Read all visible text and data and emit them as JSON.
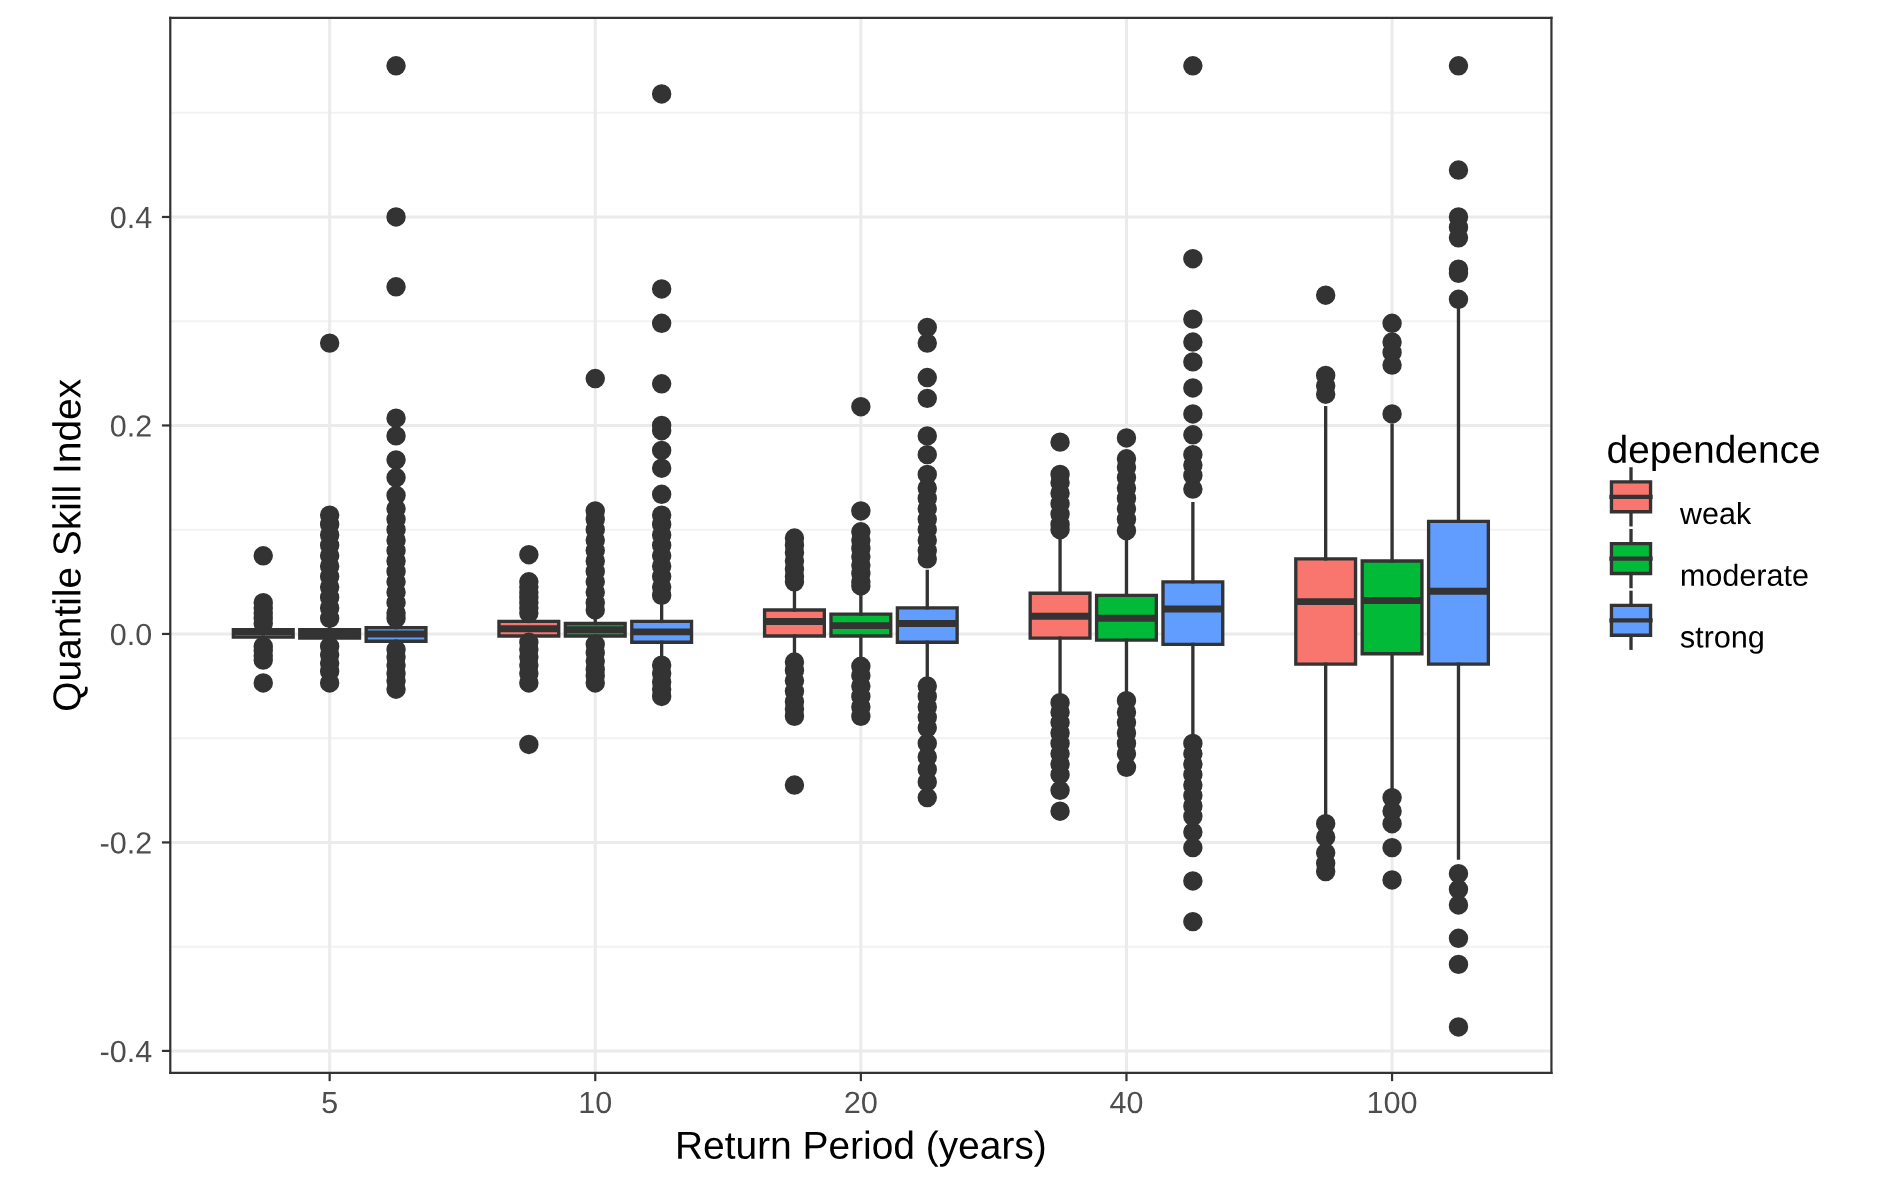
{
  "chart_data": {
    "type": "box",
    "xlabel": "Return Period (years)",
    "ylabel": "Quantile Skill Index",
    "legend_title": "dependence",
    "legend": "right",
    "grid": true,
    "categories": [
      "5",
      "10",
      "20",
      "40",
      "100"
    ],
    "ylim": [
      -0.421,
      0.591
    ],
    "yticks": [
      {
        "value": -0.4,
        "label": "-0.4"
      },
      {
        "value": -0.2,
        "label": "-0.2"
      },
      {
        "value": 0,
        "label": "0.0"
      },
      {
        "value": 0.2,
        "label": "0.2"
      },
      {
        "value": 0.4,
        "label": "0.4"
      }
    ],
    "series": [
      {
        "name": "weak",
        "color": "#f8766d",
        "boxes": [
          {
            "low": -0.008,
            "q1": -0.003,
            "median": 0.002,
            "q3": 0.004,
            "high": 0.008,
            "outliers": [
              0.075,
              0.03,
              0.025,
              0.02,
              0.015,
              0.01,
              -0.012,
              -0.016,
              -0.021,
              -0.025,
              -0.047
            ]
          },
          {
            "low": -0.006,
            "q1": -0.002,
            "median": 0.005,
            "q3": 0.012,
            "high": 0.014,
            "outliers": [
              0.076,
              0.05,
              0.045,
              0.04,
              0.035,
              0.03,
              0.025,
              0.02,
              -0.008,
              -0.015,
              -0.022,
              -0.03,
              -0.038,
              -0.047,
              -0.106
            ]
          },
          {
            "low": -0.025,
            "q1": -0.002,
            "median": 0.012,
            "q3": 0.023,
            "high": 0.045,
            "outliers": [
              0.092,
              0.085,
              0.078,
              0.07,
              0.062,
              0.055,
              0.05,
              -0.027,
              -0.035,
              -0.045,
              -0.055,
              -0.065,
              -0.072,
              -0.079,
              -0.145
            ]
          },
          {
            "low": -0.064,
            "q1": -0.004,
            "median": 0.017,
            "q3": 0.039,
            "high": 0.095,
            "outliers": [
              0.184,
              0.153,
              0.145,
              0.135,
              0.125,
              0.115,
              0.105,
              0.1,
              -0.066,
              -0.075,
              -0.085,
              -0.095,
              -0.105,
              -0.115,
              -0.125,
              -0.135,
              -0.15,
              -0.17
            ]
          },
          {
            "low": -0.176,
            "q1": -0.029,
            "median": 0.031,
            "q3": 0.072,
            "high": 0.217,
            "outliers": [
              0.325,
              0.248,
              0.238,
              0.23,
              -0.182,
              -0.195,
              -0.21,
              -0.22,
              -0.228
            ]
          }
        ]
      },
      {
        "name": "moderate",
        "color": "#00ba38",
        "boxes": [
          {
            "low": -0.009,
            "q1": -0.004,
            "median": 0.0,
            "q3": 0.004,
            "high": 0.009,
            "outliers": [
              0.279,
              0.114,
              0.105,
              0.095,
              0.085,
              0.075,
              0.065,
              0.055,
              0.045,
              0.035,
              0.025,
              0.015,
              -0.012,
              -0.02,
              -0.028,
              -0.036,
              -0.047
            ]
          },
          {
            "low": -0.006,
            "q1": -0.002,
            "median": 0.004,
            "q3": 0.01,
            "high": 0.015,
            "outliers": [
              0.245,
              0.118,
              0.11,
              0.1,
              0.09,
              0.08,
              0.07,
              0.06,
              0.05,
              0.04,
              0.03,
              0.023,
              -0.01,
              -0.018,
              -0.026,
              -0.034,
              -0.04,
              -0.047
            ]
          },
          {
            "low": -0.025,
            "q1": -0.002,
            "median": 0.008,
            "q3": 0.019,
            "high": 0.04,
            "outliers": [
              0.218,
              0.118,
              0.098,
              0.09,
              0.082,
              0.074,
              0.066,
              0.058,
              0.05,
              0.046,
              -0.031,
              -0.04,
              -0.05,
              -0.06,
              -0.07,
              -0.079
            ]
          },
          {
            "low": -0.06,
            "q1": -0.006,
            "median": 0.015,
            "q3": 0.037,
            "high": 0.09,
            "outliers": [
              0.188,
              0.168,
              0.16,
              0.15,
              0.14,
              0.13,
              0.12,
              0.11,
              0.099,
              -0.064,
              -0.075,
              -0.085,
              -0.095,
              -0.105,
              -0.115,
              -0.128
            ]
          },
          {
            "low": -0.15,
            "q1": -0.019,
            "median": 0.032,
            "q3": 0.07,
            "high": 0.2,
            "outliers": [
              0.298,
              0.28,
              0.27,
              0.258,
              0.211,
              -0.157,
              -0.17,
              -0.182,
              -0.205,
              -0.236
            ]
          }
        ]
      },
      {
        "name": "strong",
        "color": "#619cff",
        "boxes": [
          {
            "low": -0.012,
            "q1": -0.007,
            "median": 0.0,
            "q3": 0.006,
            "high": 0.012,
            "outliers": [
              0.545,
              0.4,
              0.333,
              0.207,
              0.19,
              0.167,
              0.15,
              0.133,
              0.12,
              0.11,
              0.1,
              0.09,
              0.08,
              0.07,
              0.06,
              0.05,
              0.04,
              0.03,
              0.02,
              0.015,
              -0.015,
              -0.022,
              -0.03,
              -0.038,
              -0.045,
              -0.053
            ]
          },
          {
            "low": -0.027,
            "q1": -0.008,
            "median": 0.002,
            "q3": 0.012,
            "high": 0.027,
            "outliers": [
              0.518,
              0.331,
              0.298,
              0.24,
              0.2,
              0.195,
              0.176,
              0.159,
              0.134,
              0.114,
              0.105,
              0.095,
              0.085,
              0.075,
              0.065,
              0.055,
              0.045,
              0.037,
              -0.03,
              -0.038,
              -0.046,
              -0.053,
              -0.06
            ]
          },
          {
            "low": -0.045,
            "q1": -0.008,
            "median": 0.01,
            "q3": 0.025,
            "high": 0.06,
            "outliers": [
              0.294,
              0.279,
              0.246,
              0.226,
              0.19,
              0.172,
              0.153,
              0.14,
              0.13,
              0.12,
              0.11,
              0.1,
              0.09,
              0.08,
              0.072,
              -0.05,
              -0.06,
              -0.07,
              -0.08,
              -0.09,
              -0.105,
              -0.118,
              -0.13,
              -0.142,
              -0.157
            ]
          },
          {
            "low": -0.098,
            "q1": -0.01,
            "median": 0.024,
            "q3": 0.05,
            "high": 0.125,
            "outliers": [
              0.545,
              0.36,
              0.302,
              0.28,
              0.261,
              0.236,
              0.211,
              0.191,
              0.172,
              0.162,
              0.152,
              0.139,
              -0.105,
              -0.115,
              -0.125,
              -0.135,
              -0.145,
              -0.155,
              -0.165,
              -0.175,
              -0.19,
              -0.205,
              -0.237,
              -0.276
            ]
          },
          {
            "low": -0.215,
            "q1": -0.029,
            "median": 0.041,
            "q3": 0.108,
            "high": 0.315,
            "outliers": [
              0.545,
              0.445,
              0.4,
              0.39,
              0.38,
              0.35,
              0.346,
              0.321,
              -0.23,
              -0.245,
              -0.26,
              -0.292,
              -0.317,
              -0.377
            ]
          }
        ]
      }
    ]
  }
}
